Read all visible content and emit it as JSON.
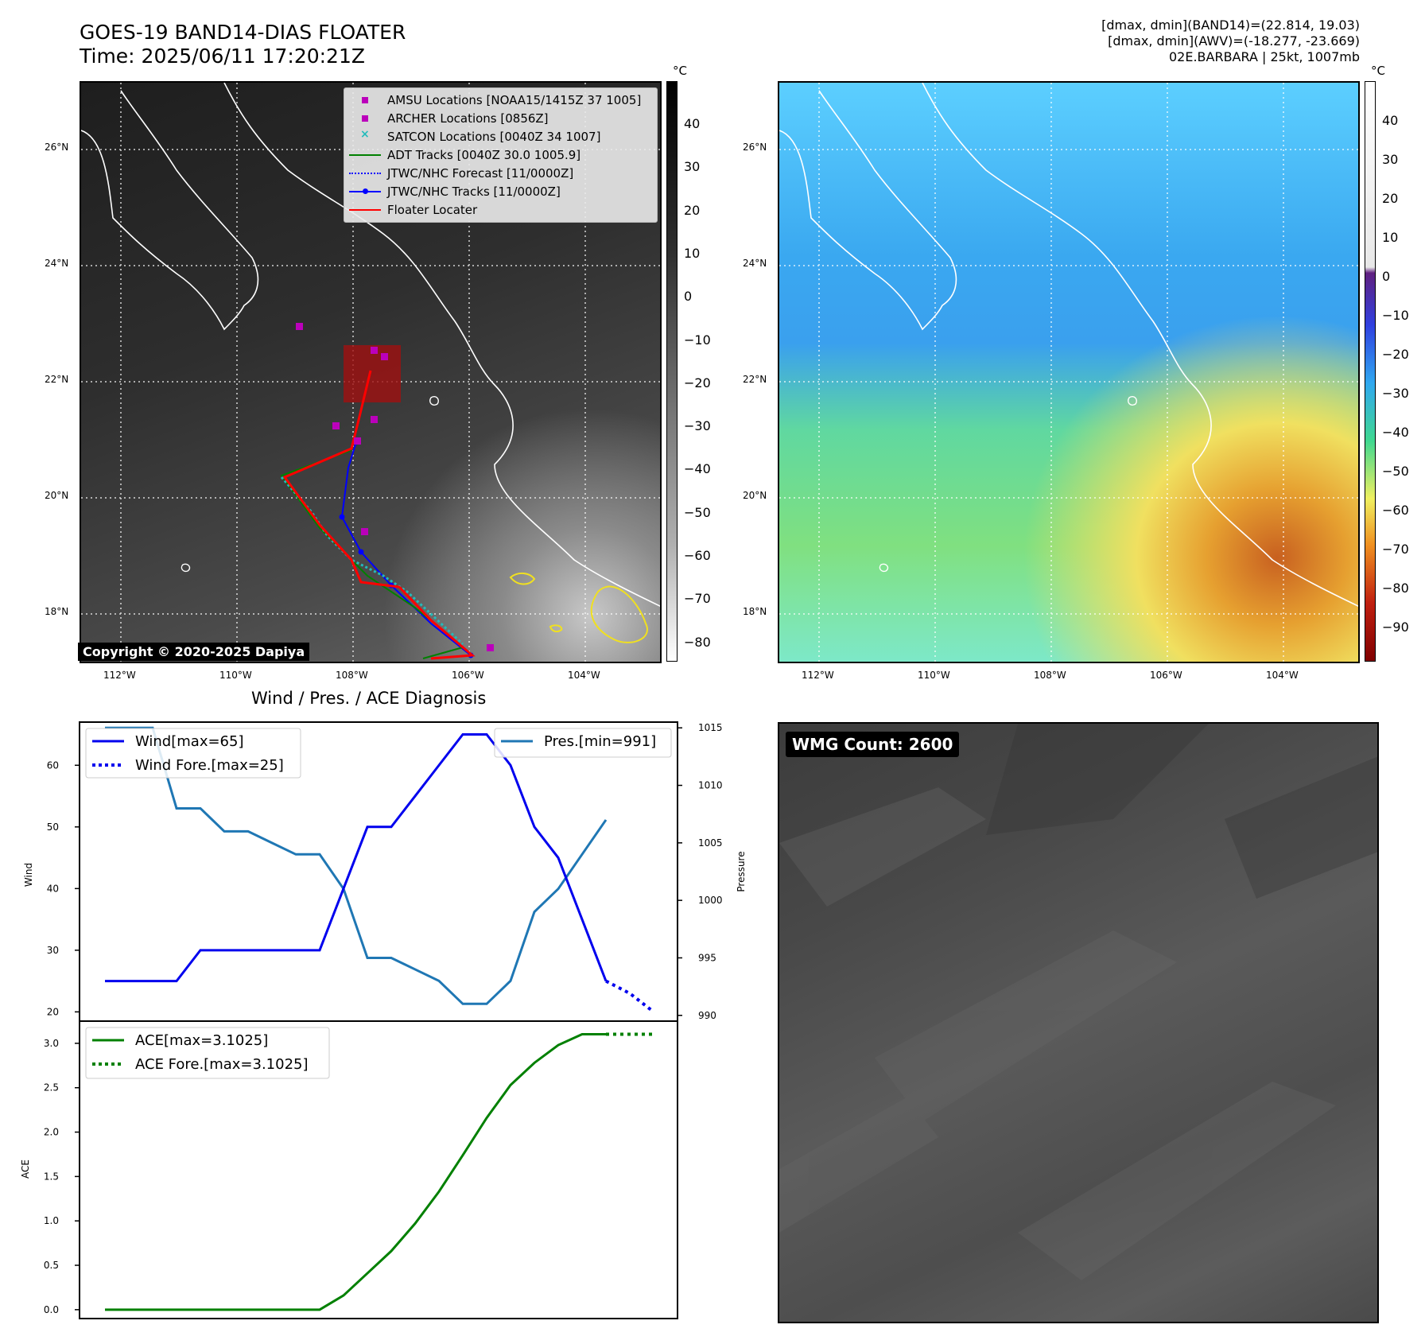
{
  "header": {
    "title_line1": "GOES-19 BAND14-DIAS FLOATER",
    "title_line2": "Time: 2025/06/11 17:20:21Z",
    "info_line1": "[dmax, dmin](BAND14)=(22.814, 19.03)",
    "info_line2": "[dmax, dmin](AWV)=(-18.277, -23.669)",
    "info_line3": "02E.BARBARA | 25kt, 1007mb"
  },
  "map": {
    "lon_labels": [
      "112°W",
      "110°W",
      "108°W",
      "106°W",
      "104°W"
    ],
    "lat_labels": [
      "26°N",
      "24°N",
      "22°N",
      "20°N",
      "18°N"
    ],
    "copyright": "Copyright © 2020-2025 Dapiya",
    "colorbar_unit": "°C",
    "left_colorbar_ticks": [
      "40",
      "30",
      "20",
      "10",
      "0",
      "−10",
      "−20",
      "−30",
      "−40",
      "−50",
      "−60",
      "−70",
      "−80"
    ],
    "right_colorbar_ticks": [
      "40",
      "30",
      "20",
      "10",
      "0",
      "−10",
      "−20",
      "−30",
      "−40",
      "−50",
      "−60",
      "−70",
      "−80",
      "−90"
    ],
    "legend": [
      {
        "label": "AMSU Locations [NOAA15/1415Z 37 1005]",
        "color": "#bb00bb",
        "style": "square"
      },
      {
        "label": "ARCHER Locations [0856Z]",
        "color": "#bb00bb",
        "style": "square"
      },
      {
        "label": "SATCON Locations [0040Z 34 1007]",
        "color": "#22bbbb",
        "style": "x"
      },
      {
        "label": "ADT Tracks [0040Z 30.0 1005.9]",
        "color": "#008000",
        "style": "line"
      },
      {
        "label": "JTWC/NHC Forecast [11/0000Z]",
        "color": "#0000ff",
        "style": "dotted"
      },
      {
        "label": "JTWC/NHC Tracks [11/0000Z]",
        "color": "#0000ff",
        "style": "line-dot"
      },
      {
        "label": "Floater Locater",
        "color": "#ff0000",
        "style": "line"
      }
    ]
  },
  "diag": {
    "title": "Wind / Pres. / ACE Diagnosis",
    "wind_axis_label": "Wind",
    "pressure_axis_label": "Pressure",
    "ace_axis_label": "ACE",
    "wind_ticks": [
      "60",
      "50",
      "40",
      "30",
      "20"
    ],
    "pressure_ticks": [
      "1015",
      "1010",
      "1005",
      "1000",
      "995",
      "990"
    ],
    "ace_ticks": [
      "3.0",
      "2.5",
      "2.0",
      "1.5",
      "1.0",
      "0.5",
      "0.0"
    ],
    "legend_wind": "Wind[max=65]",
    "legend_wind_fore": "Wind Fore.[max=25]",
    "legend_pres": "Pres.[min=991]",
    "legend_ace": "ACE[max=3.1025]",
    "legend_ace_fore": "ACE Fore.[max=3.1025]"
  },
  "wmg": {
    "label": "WMG Count: 2600"
  },
  "chart_data": [
    {
      "type": "line",
      "title": "Wind / Pres. / ACE Diagnosis",
      "ylabel": "Wind",
      "ylim": [
        18.5,
        67
      ],
      "series": [
        {
          "name": "Wind[max=65]",
          "color": "#0000ee",
          "style": "solid",
          "x": [
            0,
            1,
            2,
            3,
            4,
            5,
            6,
            7,
            8,
            9,
            10,
            11,
            12,
            13,
            14,
            15,
            16,
            17,
            18,
            19,
            20,
            21
          ],
          "values": [
            25,
            25,
            25,
            25,
            30,
            30,
            30,
            30,
            30,
            30,
            40,
            50,
            50,
            55,
            60,
            65,
            65,
            60,
            50,
            45,
            35,
            25
          ]
        },
        {
          "name": "Wind Fore.[max=25]",
          "color": "#0000ee",
          "style": "dotted",
          "x": [
            21,
            22,
            23
          ],
          "values": [
            25,
            23,
            20
          ]
        }
      ]
    },
    {
      "type": "line",
      "ylabel": "Pressure",
      "ylim": [
        989.5,
        1015.5
      ],
      "series": [
        {
          "name": "Pres.[min=991]",
          "color": "#1f77b4",
          "style": "solid",
          "x": [
            0,
            1,
            2,
            3,
            4,
            5,
            6,
            7,
            8,
            9,
            10,
            11,
            12,
            13,
            14,
            15,
            16,
            17,
            18,
            19,
            20,
            21
          ],
          "values": [
            1015,
            1015,
            1015,
            1008,
            1008,
            1006,
            1006,
            1005,
            1004,
            1004,
            1001,
            995,
            995,
            994,
            993,
            991,
            991,
            993,
            999,
            1001,
            1004,
            1007
          ]
        }
      ]
    },
    {
      "type": "line",
      "ylabel": "ACE",
      "ylim": [
        -0.1,
        3.25
      ],
      "series": [
        {
          "name": "ACE[max=3.1025]",
          "color": "#008000",
          "style": "solid",
          "x": [
            0,
            1,
            2,
            3,
            4,
            5,
            6,
            7,
            8,
            9,
            10,
            11,
            12,
            13,
            14,
            15,
            16,
            17,
            18,
            19,
            20,
            21
          ],
          "values": [
            0,
            0,
            0,
            0,
            0,
            0,
            0,
            0,
            0,
            0,
            0.16,
            0.41,
            0.66,
            0.97,
            1.33,
            1.74,
            2.16,
            2.53,
            2.78,
            2.98,
            3.1025,
            3.1025
          ]
        },
        {
          "name": "ACE Fore.[max=3.1025]",
          "color": "#008000",
          "style": "dotted",
          "x": [
            21,
            22,
            23
          ],
          "values": [
            3.1025,
            3.1025,
            3.1025
          ]
        }
      ]
    }
  ]
}
